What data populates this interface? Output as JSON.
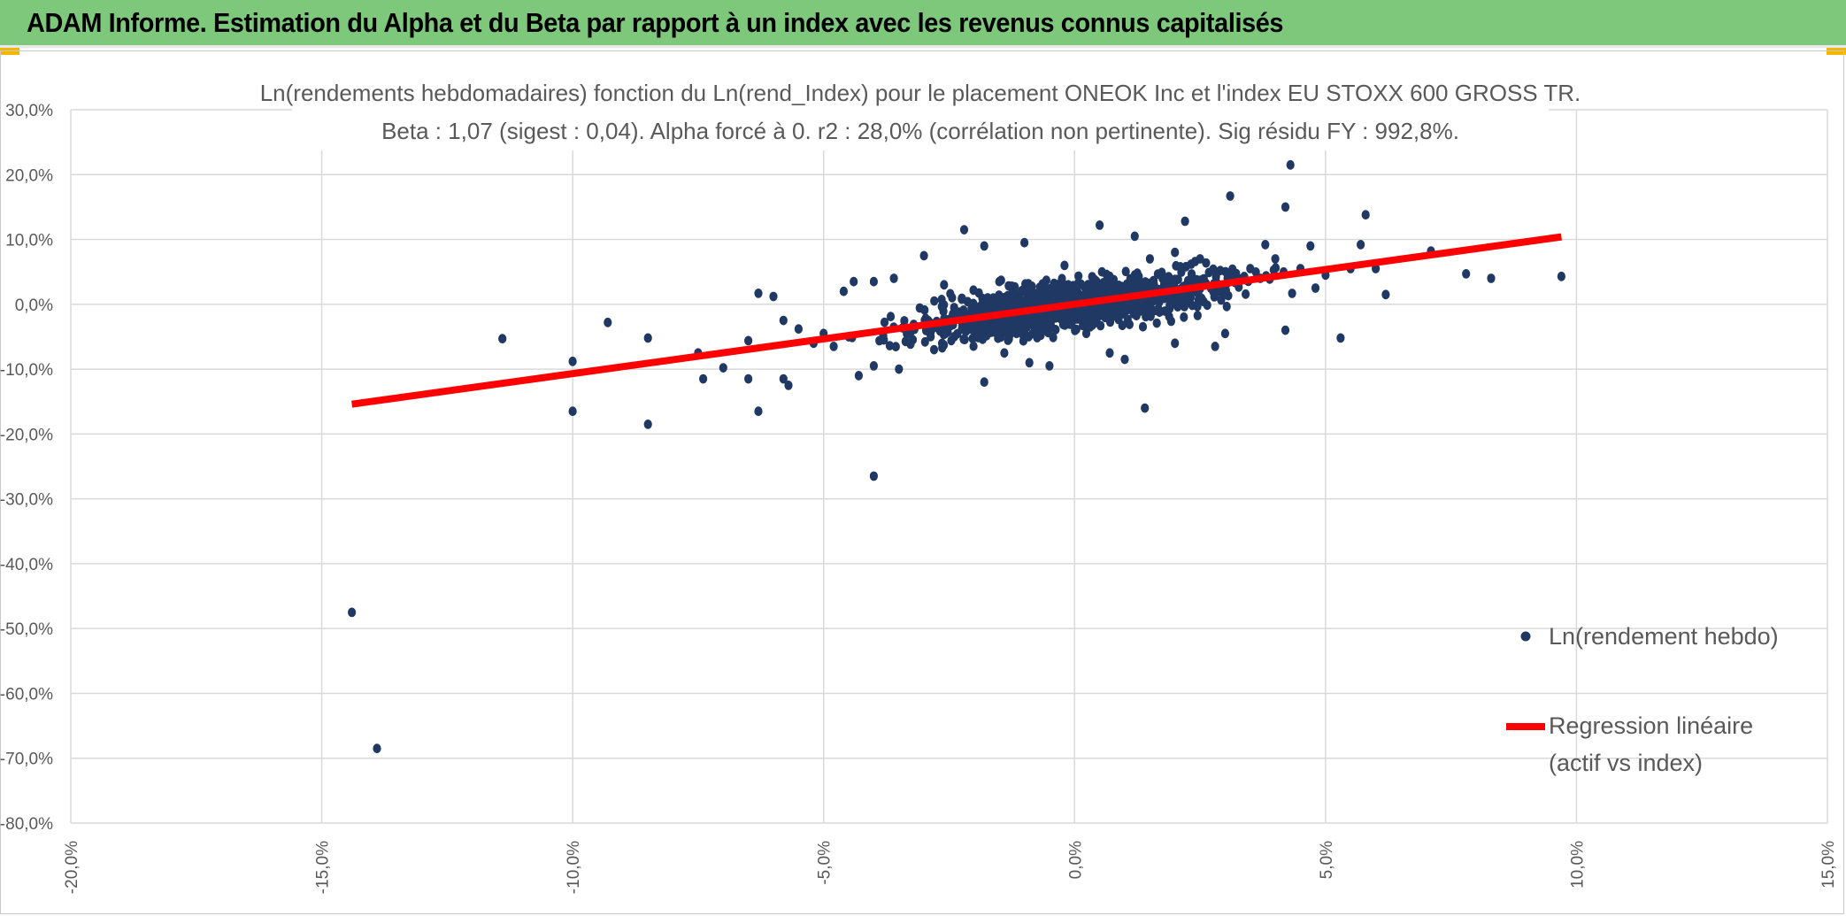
{
  "header": {
    "title": "ADAM Informe. Estimation du Alpha et du Beta par rapport à un index avec les revenus connus capitalisés"
  },
  "colors": {
    "header_bg": "#7dc87b",
    "points": "#203864",
    "regression": "#ff0000",
    "grid": "#d9d9d9"
  },
  "chart_data": {
    "type": "scatter",
    "title": "Ln(rendements hebdomadaires) fonction du Ln(rend_Index) pour le placement ONEOK Inc et l'index EU STOXX 600 GROSS TR.",
    "subtitle": "Beta : 1,07 (sigest : 0,04). Alpha forcé à 0. r2 : 28,0% (corrélation non pertinente). Sig résidu FY : 992,8%.",
    "xlim": [
      -0.2,
      0.15
    ],
    "ylim": [
      -0.8,
      0.3
    ],
    "x_tick_labels": [
      "-20,0%",
      "-15,0%",
      "-10,0%",
      "-5,0%",
      "0,0%",
      "5,0%",
      "10,0%",
      "15,0%"
    ],
    "y_tick_labels": [
      "30,0%",
      "20,0%",
      "10,0%",
      "0,0%",
      "-10,0%",
      "-20,0%",
      "-30,0%",
      "-40,0%",
      "-50,0%",
      "-60,0%",
      "-70,0%",
      "-80,0%"
    ],
    "grid": true,
    "legend_position": "right",
    "series": [
      {
        "name": "Ln(rendement hebdo)",
        "kind": "scatter",
        "points": [
          [
            -0.144,
            -0.475
          ],
          [
            -0.139,
            -0.685
          ],
          [
            -0.114,
            -0.053
          ],
          [
            -0.1,
            -0.088
          ],
          [
            -0.1,
            -0.165
          ],
          [
            -0.093,
            -0.028
          ],
          [
            -0.085,
            -0.052
          ],
          [
            -0.085,
            -0.185
          ],
          [
            -0.075,
            -0.075
          ],
          [
            -0.074,
            -0.115
          ],
          [
            -0.07,
            -0.098
          ],
          [
            -0.065,
            -0.056
          ],
          [
            -0.065,
            -0.115
          ],
          [
            -0.063,
            0.017
          ],
          [
            -0.063,
            -0.165
          ],
          [
            -0.06,
            0.012
          ],
          [
            -0.058,
            -0.025
          ],
          [
            -0.058,
            -0.115
          ],
          [
            -0.057,
            -0.125
          ],
          [
            -0.055,
            -0.038
          ],
          [
            -0.052,
            -0.06
          ],
          [
            -0.05,
            -0.045
          ],
          [
            -0.048,
            -0.065
          ],
          [
            -0.046,
            0.02
          ],
          [
            -0.044,
            0.035
          ],
          [
            -0.043,
            -0.11
          ],
          [
            -0.04,
            0.035
          ],
          [
            -0.04,
            -0.095
          ],
          [
            -0.04,
            -0.265
          ],
          [
            -0.038,
            -0.055
          ],
          [
            -0.036,
            0.04
          ],
          [
            -0.035,
            -0.1
          ],
          [
            -0.033,
            -0.045
          ],
          [
            -0.03,
            0.075
          ],
          [
            -0.028,
            -0.07
          ],
          [
            -0.026,
            0.03
          ],
          [
            -0.024,
            -0.005
          ],
          [
            -0.022,
            0.115
          ],
          [
            -0.02,
            -0.05
          ],
          [
            -0.018,
            0.09
          ],
          [
            -0.018,
            -0.12
          ],
          [
            -0.015,
            0.035
          ],
          [
            -0.014,
            -0.075
          ],
          [
            -0.01,
            0.095
          ],
          [
            -0.009,
            -0.09
          ],
          [
            -0.005,
            -0.095
          ],
          [
            -0.002,
            0.06
          ],
          [
            0.005,
            0.122
          ],
          [
            0.007,
            -0.075
          ],
          [
            0.01,
            -0.085
          ],
          [
            0.012,
            0.105
          ],
          [
            0.014,
            -0.16
          ],
          [
            0.015,
            0.07
          ],
          [
            0.02,
            0.08
          ],
          [
            0.022,
            0.128
          ],
          [
            0.02,
            -0.06
          ],
          [
            0.025,
            0.07
          ],
          [
            0.028,
            -0.065
          ],
          [
            0.031,
            0.167
          ],
          [
            0.03,
            -0.045
          ],
          [
            0.035,
            0.055
          ],
          [
            0.037,
            0.04
          ],
          [
            0.038,
            0.092
          ],
          [
            0.04,
            0.07
          ],
          [
            0.042,
            0.15
          ],
          [
            0.043,
            0.215
          ],
          [
            0.042,
            -0.04
          ],
          [
            0.045,
            0.055
          ],
          [
            0.047,
            0.09
          ],
          [
            0.048,
            0.025
          ],
          [
            0.05,
            0.045
          ],
          [
            0.053,
            -0.052
          ],
          [
            0.055,
            0.055
          ],
          [
            0.057,
            0.092
          ],
          [
            0.058,
            0.138
          ],
          [
            0.06,
            0.055
          ],
          [
            0.062,
            0.015
          ],
          [
            0.071,
            0.082
          ],
          [
            0.078,
            0.047
          ],
          [
            0.083,
            0.04
          ],
          [
            0.097,
            0.043
          ]
        ],
        "cloud": {
          "count": 1200,
          "x_center": 0.0,
          "x_spread": 0.02,
          "noise_sd": 0.025,
          "beta": 1.07
        }
      },
      {
        "name": "Regression linéaire\n(actif vs index)",
        "kind": "line",
        "x": [
          -0.144,
          0.097
        ],
        "y": [
          -0.154,
          0.104
        ]
      }
    ]
  }
}
